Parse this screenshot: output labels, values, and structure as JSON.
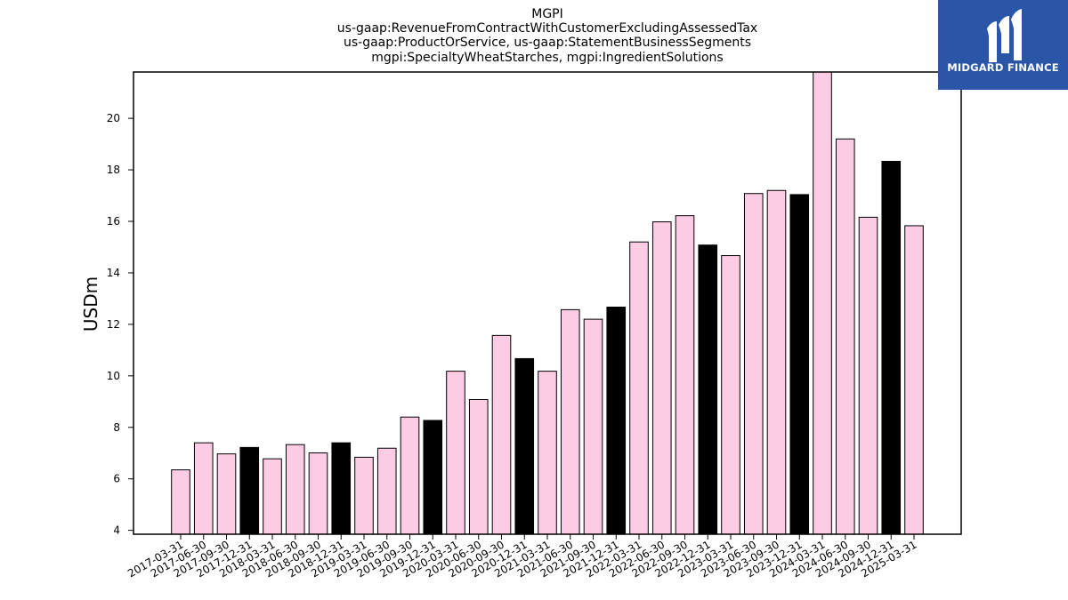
{
  "chart_data": {
    "type": "bar",
    "title_lines": [
      "MGPI",
      "us-gaap:RevenueFromContractWithCustomerExcludingAssessedTax",
      "us-gaap:ProductOrService, us-gaap:StatementBusinessSegments",
      "mgpi:SpecialtyWheatStarches, mgpi:IngredientSolutions"
    ],
    "ylabel": "USDm",
    "xlabel": "",
    "ylim": [
      3.85,
      21.8
    ],
    "yticks": [
      4,
      6,
      8,
      10,
      12,
      14,
      16,
      18,
      20
    ],
    "categories": [
      "2017-03-31",
      "2017-06-30",
      "2017-09-30",
      "2017-12-31",
      "2018-03-31",
      "2018-06-30",
      "2018-09-30",
      "2018-12-31",
      "2019-03-31",
      "2019-06-30",
      "2019-09-30",
      "2019-12-31",
      "2020-03-31",
      "2020-06-30",
      "2020-09-30",
      "2020-12-31",
      "2021-03-31",
      "2021-06-30",
      "2021-09-30",
      "2021-12-31",
      "2022-03-31",
      "2022-06-30",
      "2022-09-30",
      "2022-12-31",
      "2023-03-31",
      "2023-06-30",
      "2023-09-30",
      "2023-12-31",
      "2024-03-31",
      "2024-06-30",
      "2024-09-30",
      "2024-12-31",
      "2025-03-31"
    ],
    "values": [
      6.35,
      7.4,
      6.97,
      7.22,
      6.78,
      7.33,
      7.01,
      7.4,
      6.84,
      7.19,
      8.4,
      8.27,
      10.18,
      9.08,
      11.57,
      10.67,
      10.18,
      12.57,
      12.2,
      12.67,
      15.2,
      15.98,
      16.22,
      15.08,
      14.67,
      17.08,
      17.2,
      17.04,
      21.8,
      19.2,
      16.16,
      18.33,
      15.83
    ],
    "year_end_flags": [
      false,
      false,
      false,
      true,
      false,
      false,
      false,
      true,
      false,
      false,
      false,
      true,
      false,
      false,
      false,
      true,
      false,
      false,
      false,
      true,
      false,
      false,
      false,
      true,
      false,
      false,
      false,
      true,
      false,
      false,
      false,
      true,
      false
    ],
    "colors": {
      "quarter_bar": "#fccce4",
      "year_end_bar": "#000000",
      "bar_edge": "#000000"
    },
    "grid": false,
    "legend": "none"
  },
  "logo": {
    "text": "MIDGARD FINANCE",
    "background": "#2b56a8"
  }
}
